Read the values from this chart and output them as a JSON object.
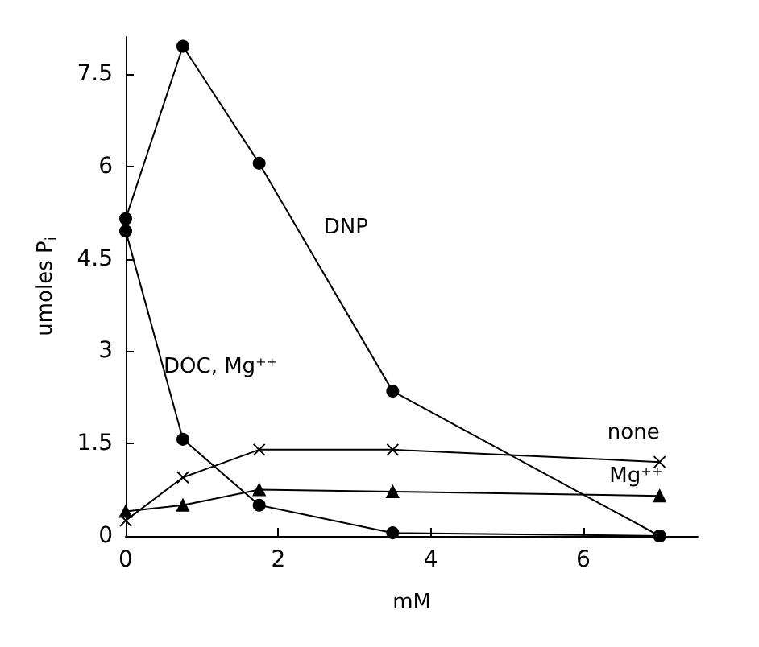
{
  "chart_data": {
    "type": "line",
    "xlabel": "mM",
    "ylabel": "umoles P$_{i}$",
    "xlim": [
      0,
      7.5
    ],
    "xticks": [
      0,
      2,
      4,
      6
    ],
    "ylim": [
      0,
      8.1
    ],
    "yticks": [
      0,
      1.5,
      3,
      4.5,
      6,
      7.5
    ],
    "grid": false,
    "legend": false,
    "series": [
      {
        "name": "DNP",
        "color": "#000000",
        "marker": "circle",
        "x": [
          0,
          0.75,
          1.75,
          3.5,
          7
        ],
        "values": [
          5.15,
          7.95,
          6.05,
          2.35,
          0
        ]
      },
      {
        "name": "DOC, Mg⁺⁺",
        "color": "#000000",
        "marker": "circle",
        "x": [
          0,
          0.75,
          1.75,
          3.5,
          7
        ],
        "values": [
          4.95,
          1.57,
          0.5,
          0.05,
          0
        ]
      },
      {
        "name": "none",
        "color": "#000000",
        "marker": "cross",
        "x": [
          0,
          0.75,
          1.75,
          3.5,
          7
        ],
        "values": [
          0.25,
          0.95,
          1.4,
          1.4,
          1.2
        ]
      },
      {
        "name": "Mg⁺⁺",
        "color": "#000000",
        "marker": "triangle",
        "x": [
          0,
          0.75,
          1.75,
          3.5,
          7
        ],
        "values": [
          0.4,
          0.5,
          0.75,
          0.72,
          0.65
        ]
      }
    ]
  }
}
